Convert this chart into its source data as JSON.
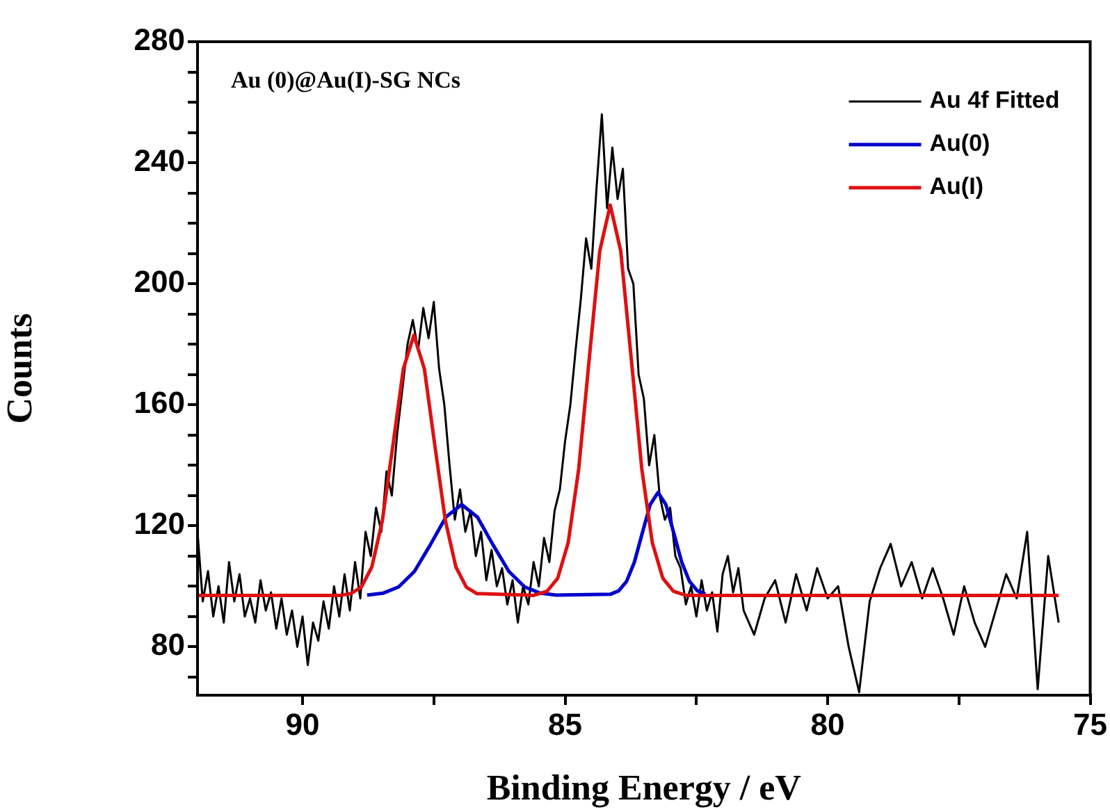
{
  "chart_data": {
    "type": "line",
    "xlabel": "Binding Energy / eV",
    "ylabel": "Counts",
    "annotations": [
      "Au (0)@Au(I)-SG NCs"
    ],
    "legend": "top right",
    "xlim": [
      92,
      75
    ],
    "ylim": [
      64,
      280
    ],
    "xticks": [
      90,
      {
        "value": 87.5,
        "label": null
      },
      85,
      {
        "value": 82.5,
        "label": null
      },
      80,
      {
        "value": 77.5,
        "label": null
      },
      75
    ],
    "yticks": [
      {
        "value": 70,
        "label": null
      },
      80,
      {
        "value": 90,
        "label": null
      },
      {
        "value": 100,
        "label": null
      },
      {
        "value": 110,
        "label": null
      },
      120,
      {
        "value": 130,
        "label": null
      },
      {
        "value": 140,
        "label": null
      },
      {
        "value": 150,
        "label": null
      },
      160,
      {
        "value": 170,
        "label": null
      },
      {
        "value": 180,
        "label": null
      },
      {
        "value": 190,
        "label": null
      },
      200,
      {
        "value": 210,
        "label": null
      },
      {
        "value": 220,
        "label": null
      },
      {
        "value": 230,
        "label": null
      },
      240,
      {
        "value": 250,
        "label": null
      },
      {
        "value": 260,
        "label": null
      },
      {
        "value": 270,
        "label": null
      },
      280
    ],
    "series": [
      {
        "name": "Au 4f Fitted",
        "color": "#000000",
        "x": [
          92.0,
          91.9,
          91.8,
          91.7,
          91.6,
          91.5,
          91.4,
          91.3,
          91.2,
          91.1,
          91.0,
          90.9,
          90.8,
          90.7,
          90.6,
          90.5,
          90.4,
          90.3,
          90.2,
          90.1,
          90.0,
          89.9,
          89.8,
          89.7,
          89.6,
          89.5,
          89.4,
          89.3,
          89.2,
          89.1,
          89.0,
          88.9,
          88.8,
          88.7,
          88.6,
          88.5,
          88.4,
          88.3,
          88.2,
          88.1,
          88.0,
          87.9,
          87.8,
          87.7,
          87.6,
          87.5,
          87.4,
          87.3,
          87.2,
          87.1,
          87.0,
          86.9,
          86.8,
          86.7,
          86.6,
          86.5,
          86.4,
          86.3,
          86.2,
          86.1,
          86.0,
          85.9,
          85.8,
          85.7,
          85.6,
          85.5,
          85.4,
          85.3,
          85.2,
          85.1,
          85.0,
          84.9,
          84.8,
          84.7,
          84.6,
          84.5,
          84.4,
          84.3,
          84.2,
          84.1,
          84.0,
          83.9,
          83.8,
          83.7,
          83.6,
          83.5,
          83.4,
          83.3,
          83.2,
          83.1,
          83.0,
          82.9,
          82.8,
          82.7,
          82.6,
          82.5,
          82.4,
          82.3,
          82.2,
          82.1,
          82.0,
          81.9,
          81.8,
          81.7,
          81.6,
          81.4,
          81.2,
          81.0,
          80.8,
          80.6,
          80.4,
          80.2,
          80.0,
          79.8,
          79.6,
          79.4,
          79.2,
          79.0,
          78.8,
          78.6,
          78.4,
          78.2,
          78.0,
          77.8,
          77.6,
          77.4,
          77.2,
          77.0,
          76.8,
          76.6,
          76.4,
          76.2,
          76.0,
          75.8,
          75.6
        ],
        "values": [
          118,
          95,
          105,
          90,
          100,
          88,
          108,
          95,
          104,
          90,
          96,
          88,
          102,
          92,
          98,
          86,
          96,
          84,
          92,
          80,
          90,
          74,
          88,
          82,
          95,
          86,
          100,
          90,
          104,
          92,
          108,
          96,
          118,
          110,
          126,
          118,
          138,
          130,
          150,
          165,
          180,
          188,
          178,
          192,
          182,
          194,
          172,
          160,
          140,
          122,
          132,
          118,
          125,
          110,
          118,
          102,
          112,
          100,
          106,
          94,
          102,
          88,
          100,
          94,
          108,
          100,
          116,
          108,
          125,
          132,
          148,
          160,
          178,
          195,
          215,
          205,
          232,
          256,
          225,
          245,
          228,
          238,
          205,
          200,
          170,
          162,
          140,
          150,
          130,
          122,
          126,
          110,
          106,
          94,
          100,
          90,
          102,
          92,
          98,
          85,
          104,
          110,
          98,
          106,
          92,
          84,
          96,
          102,
          88,
          104,
          92,
          106,
          96,
          100,
          80,
          65,
          95,
          106,
          114,
          100,
          108,
          96,
          106,
          96,
          84,
          100,
          88,
          80,
          92,
          104,
          96,
          118,
          66,
          110,
          88
        ]
      },
      {
        "name": "Au(0)",
        "color": "#0000cc",
        "x": [
          88.77,
          88.47,
          88.17,
          87.87,
          87.57,
          87.27,
          86.97,
          86.67,
          86.37,
          86.07,
          85.77,
          85.47,
          85.17,
          84.13,
          83.98,
          83.83,
          83.68,
          83.53,
          83.38,
          83.23,
          83.08,
          82.93,
          82.78,
          82.63,
          82.48,
          82.33
        ],
        "values": [
          97.1,
          97.7,
          99.8,
          104.9,
          113.6,
          122.9,
          127,
          122.9,
          113.6,
          104.9,
          99.8,
          97.7,
          97.1,
          97.4,
          98.5,
          101.6,
          108,
          117.6,
          127,
          131,
          127,
          117.6,
          108,
          101.6,
          98.5,
          97.4
        ]
      },
      {
        "name": "Au(I)",
        "color": "#dd1111",
        "x": [
          92,
          89.28,
          89.08,
          88.88,
          88.68,
          88.48,
          88.28,
          88.08,
          87.88,
          87.68,
          87.48,
          87.28,
          87.08,
          86.88,
          86.68,
          85.6,
          85.34,
          85.14,
          84.94,
          84.74,
          84.54,
          84.34,
          84.14,
          83.94,
          83.74,
          83.54,
          83.34,
          83.14,
          82.94,
          82.7,
          75.6
        ],
        "values": [
          97,
          97,
          97.6,
          99.7,
          106.4,
          121.7,
          146.5,
          171.9,
          183,
          171.9,
          146.5,
          121.7,
          106.4,
          99.7,
          97.6,
          97,
          98.4,
          102.7,
          114.5,
          138.9,
          175.2,
          210.8,
          226,
          210.8,
          175.2,
          138.9,
          114.5,
          102.7,
          98.4,
          97,
          97
        ]
      }
    ]
  }
}
